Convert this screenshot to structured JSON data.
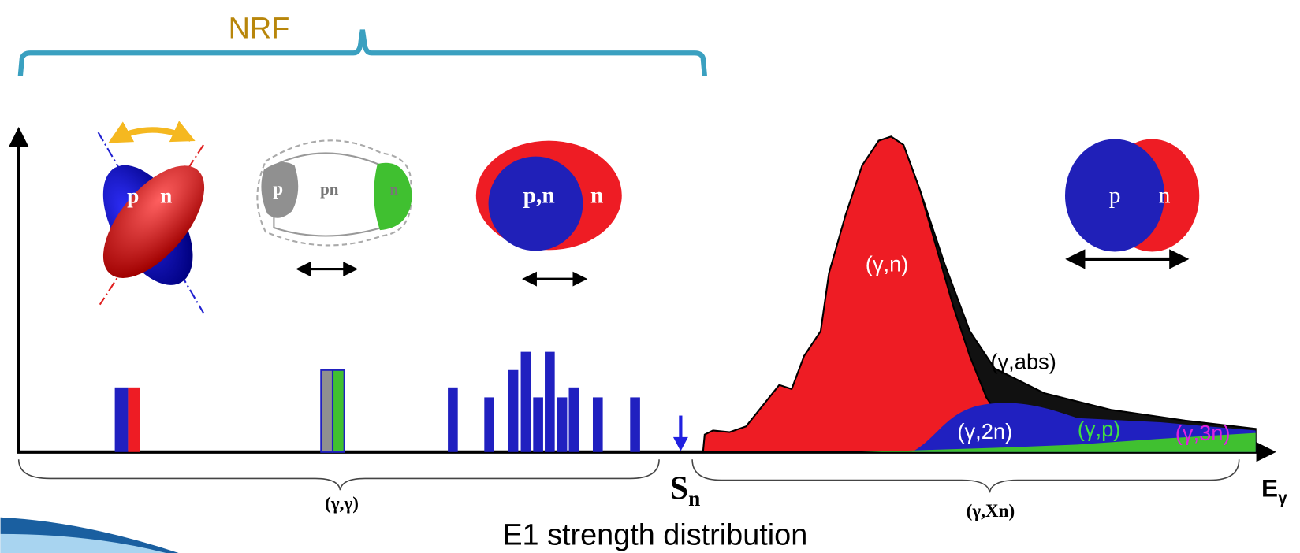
{
  "header": {
    "title": "NRF"
  },
  "nuclei": [
    {
      "labels": [
        "p",
        "n"
      ]
    },
    {
      "labels": [
        "p",
        "pn",
        "n"
      ]
    },
    {
      "labels": [
        "p,n",
        "n"
      ]
    },
    {
      "labels": [
        "p",
        "n"
      ]
    }
  ],
  "channels": [
    "(γ,n)",
    "(γ,abs)",
    "(γ,2n)",
    "(γ,p)",
    "(γ,3n)"
  ],
  "regions": [
    {
      "label": "(γ,γ)"
    },
    {
      "label": "(γ,Xn)"
    }
  ],
  "threshold": {
    "symbol": "S",
    "subscript": "n"
  },
  "axis": {
    "symbol": "E",
    "subscript": "γ"
  },
  "caption": "E1 strength distribution"
}
